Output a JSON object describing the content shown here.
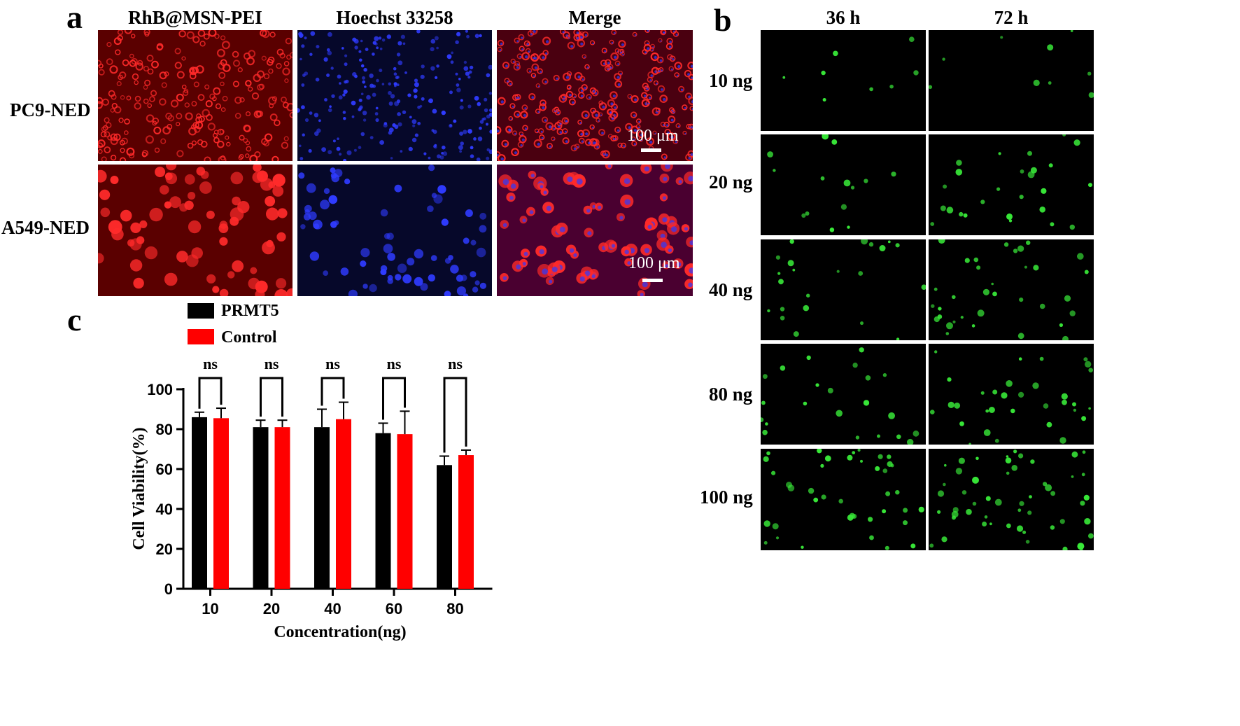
{
  "panel_a": {
    "letter": "a",
    "columns": [
      "RhB@MSN-PEI",
      "Hoechst 33258",
      "Merge"
    ],
    "rows": [
      "PC9-NED",
      "A549-NED"
    ],
    "scale_bar_label": "100 μm"
  },
  "panel_b": {
    "letter": "b",
    "columns": [
      "36 h",
      "72 h"
    ],
    "rows": [
      "10 ng",
      "20 ng",
      "40 ng",
      "80 ng",
      "100 ng"
    ]
  },
  "panel_c": {
    "letter": "c"
  },
  "colors": {
    "prmt5": "#000000",
    "control": "#ff0000",
    "rhb_channel": "#ff2a2a",
    "hoechst_channel": "#2f3bff",
    "gfp_channel": "#38e838"
  },
  "chart_data": {
    "type": "bar",
    "categories": [
      "10",
      "20",
      "40",
      "60",
      "80"
    ],
    "series": [
      {
        "name": "PRMT5",
        "values": [
          86,
          81,
          81,
          78,
          62
        ],
        "errors": [
          2.5,
          3.5,
          9,
          5,
          4.5
        ]
      },
      {
        "name": "Control",
        "values": [
          85.5,
          81,
          85,
          77.5,
          67
        ],
        "errors": [
          5,
          3.5,
          8.5,
          11.5,
          2.5
        ]
      }
    ],
    "significance": [
      "ns",
      "ns",
      "ns",
      "ns",
      "ns"
    ],
    "xlabel": "Concentration(ng)",
    "ylabel": "Cell Viability(%)",
    "ylim": [
      0,
      100
    ],
    "yticks": [
      0,
      20,
      40,
      60,
      80,
      100
    ],
    "legend": "top-left",
    "grid": false
  }
}
